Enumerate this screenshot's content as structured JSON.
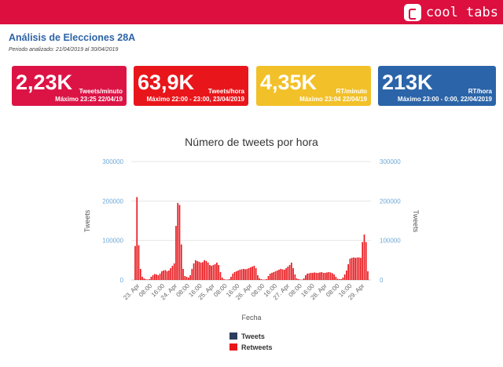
{
  "header": {
    "logo_text": "cool tabs",
    "accent": "#dc0f3f"
  },
  "page": {
    "title": "Análisis de Elecciones 28A",
    "period_label": "Periodo analizado: 21/04/2019 al 30/04/2019"
  },
  "cards": [
    {
      "value": "2,23K",
      "unit": "Tweets/minuto",
      "max": "Máximo 23:25 22/04/19",
      "color": "#dc1446"
    },
    {
      "value": "63,9K",
      "unit": "Tweets/hora",
      "max": "Máximo 22:00 - 23:00, 23/04/2019",
      "color": "#e8161b"
    },
    {
      "value": "4,35K",
      "unit": "RT/minuto",
      "max": "Máximo 23:04 22/04/19",
      "color": "#f2c029"
    },
    {
      "value": "213K",
      "unit": "RT/hora",
      "max": "Máximo 23:00 - 0:00, 22/04/2019",
      "color": "#2b64a8"
    }
  ],
  "chart_data": {
    "type": "bar",
    "title": "Número de tweets por hora",
    "xlabel": "Fecha",
    "ylabel_left": "Tweets",
    "ylabel_right": "Tweets",
    "ylim": [
      0,
      300000
    ],
    "yticks": [
      "0",
      "100000",
      "200000",
      "300000"
    ],
    "xticks": [
      "23. Apr",
      "08:00",
      "16:00",
      "24. Apr",
      "08:00",
      "16:00",
      "25. Apr",
      "08:00",
      "16:00",
      "26. Apr",
      "08:00",
      "16:00",
      "27. Apr",
      "08:00",
      "16:00",
      "28. Apr",
      "08:00",
      "16:00",
      "29. Apr"
    ],
    "legend": [
      "Tweets",
      "Retweets"
    ],
    "legend_placement": "bottom",
    "series": [
      {
        "name": "Tweets",
        "color": "#2c3e5c",
        "values": []
      },
      {
        "name": "Retweets",
        "color": "#e8161b",
        "values": [
          86000,
          210000,
          88000,
          28000,
          8000,
          4000,
          2000,
          1000,
          2000,
          8000,
          12000,
          15000,
          14000,
          12000,
          16000,
          22000,
          24000,
          25000,
          22000,
          24000,
          30000,
          36000,
          42000,
          137000,
          195000,
          190000,
          90000,
          28000,
          10000,
          8000,
          6000,
          12000,
          28000,
          42000,
          50000,
          48000,
          46000,
          44000,
          45000,
          50000,
          48000,
          44000,
          38000,
          36000,
          38000,
          40000,
          44000,
          38000,
          20000,
          6000,
          2000,
          1000,
          1000,
          2000,
          8000,
          16000,
          20000,
          22000,
          24000,
          26000,
          27000,
          28000,
          27000,
          28000,
          30000,
          32000,
          34000,
          36000,
          30000,
          12000,
          4000,
          2000,
          1000,
          1000,
          2000,
          10000,
          16000,
          18000,
          20000,
          22000,
          24000,
          26000,
          28000,
          27000,
          26000,
          30000,
          34000,
          38000,
          44000,
          30000,
          14000,
          4000,
          2000,
          1000,
          1000,
          4000,
          12000,
          16000,
          17000,
          18000,
          18000,
          19000,
          18000,
          18000,
          19000,
          20000,
          18000,
          18000,
          19000,
          20000,
          19000,
          17000,
          14000,
          8000,
          3000,
          2000,
          2000,
          6000,
          14000,
          24000,
          40000,
          54000,
          56000,
          57000,
          56000,
          57000,
          57000,
          56000,
          96000,
          115000,
          96000,
          22000
        ]
      }
    ]
  }
}
